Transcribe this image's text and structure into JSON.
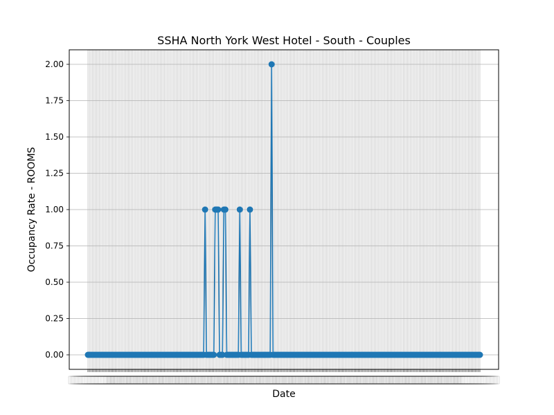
{
  "chart_data": {
    "type": "line",
    "title": "SSHA North York West Hotel - South - Couples",
    "xlabel": "Date",
    "ylabel": "Occupancy Rate - ROOMS",
    "ylim": [
      -0.1,
      2.1
    ],
    "yticks": [
      "0.00",
      "0.25",
      "0.50",
      "0.75",
      "1.00",
      "1.25",
      "1.50",
      "1.75",
      "2.00"
    ],
    "xticks_legible": false,
    "grid": true,
    "marker": "circle",
    "line_color": "#1f77b4",
    "n_points": 272,
    "nonzero_points": [
      {
        "index": 81,
        "value": 1
      },
      {
        "index": 88,
        "value": 1
      },
      {
        "index": 89,
        "value": 1
      },
      {
        "index": 90,
        "value": 1
      },
      {
        "index": 94,
        "value": 1
      },
      {
        "index": 95,
        "value": 1
      },
      {
        "index": 105,
        "value": 1
      },
      {
        "index": 112,
        "value": 1
      },
      {
        "index": 127,
        "value": 2
      }
    ],
    "default_value": 0
  }
}
